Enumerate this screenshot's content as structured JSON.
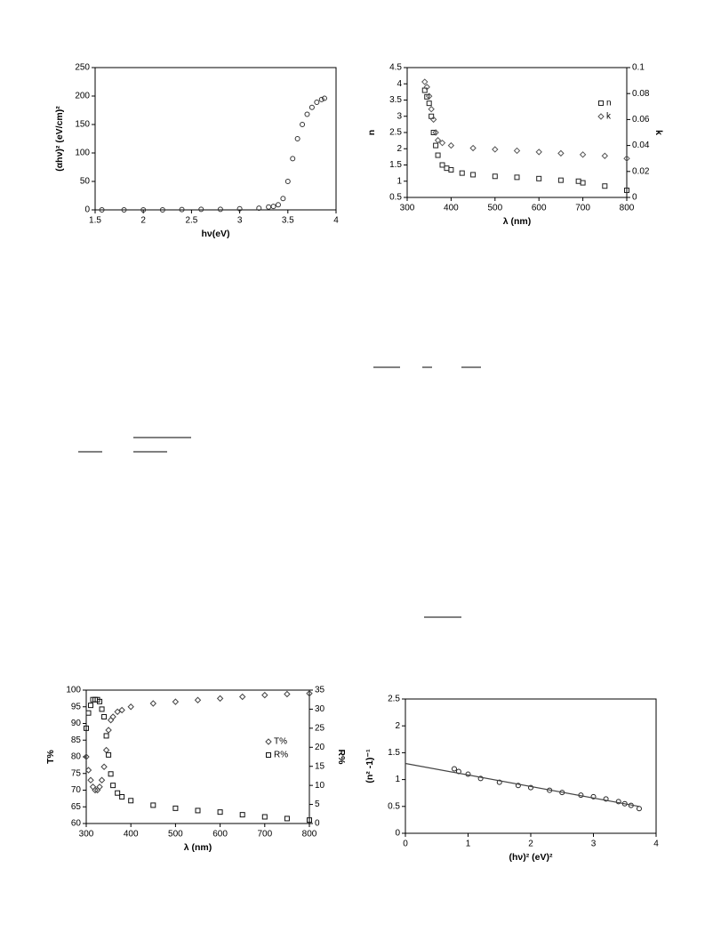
{
  "chart_data": [
    {
      "type": "scatter",
      "xlabel": "hν(eV)",
      "ylabel": "(αhν)² (eV/cm)²",
      "xlim": [
        1.5,
        4
      ],
      "xticks": [
        1.5,
        2,
        2.5,
        3,
        3.5,
        4
      ],
      "ylim": [
        0,
        250
      ],
      "yticks": [
        0,
        50,
        100,
        150,
        200,
        250
      ],
      "series": [
        {
          "color": "#333333",
          "marker": "circle",
          "x": [
            1.57,
            1.8,
            2.0,
            2.2,
            2.4,
            2.6,
            2.8,
            3.0,
            3.2,
            3.3,
            3.35,
            3.4,
            3.45,
            3.5,
            3.55,
            3.6,
            3.65,
            3.7,
            3.75,
            3.8,
            3.85,
            3.88
          ],
          "values": [
            0,
            0,
            0,
            0,
            0.5,
            1,
            1,
            2,
            3,
            5,
            6,
            9,
            20,
            50,
            90,
            125,
            150,
            168,
            180,
            189,
            194,
            196
          ]
        }
      ]
    },
    {
      "type": "scatter",
      "xlabel": "λ (nm)",
      "ylabel": "n",
      "y2label": "k",
      "xlim": [
        300,
        800
      ],
      "xticks": [
        300,
        400,
        500,
        600,
        700,
        800
      ],
      "ylim": [
        0.5,
        4.5
      ],
      "yticks": [
        0.5,
        1,
        1.5,
        2,
        2.5,
        3,
        3.5,
        4,
        4.5
      ],
      "y2lim": [
        0,
        0.1
      ],
      "y2ticks": [
        0,
        0.02,
        0.04,
        0.06,
        0.08,
        0.1
      ],
      "legend": "right",
      "series": [
        {
          "name": "n",
          "color": "#222222",
          "marker": "square",
          "x": [
            340,
            345,
            350,
            355,
            360,
            365,
            370,
            380,
            390,
            400,
            425,
            450,
            500,
            550,
            600,
            650,
            690,
            700,
            750,
            800
          ],
          "values": [
            3.8,
            3.6,
            3.4,
            3.0,
            2.5,
            2.1,
            1.8,
            1.5,
            1.4,
            1.35,
            1.25,
            1.2,
            1.15,
            1.12,
            1.08,
            1.03,
            1.0,
            0.95,
            0.85,
            0.72
          ]
        },
        {
          "name": "k",
          "color": "#555555",
          "marker": "diamond",
          "axis": "y2",
          "x": [
            340,
            345,
            350,
            355,
            360,
            365,
            370,
            380,
            400,
            450,
            500,
            550,
            600,
            650,
            700,
            750,
            800
          ],
          "values": [
            0.089,
            0.085,
            0.078,
            0.068,
            0.06,
            0.05,
            0.044,
            0.042,
            0.04,
            0.038,
            0.037,
            0.036,
            0.035,
            0.034,
            0.033,
            0.032,
            0.03
          ]
        }
      ]
    },
    {
      "type": "scatter",
      "xlabel": "λ (nm)",
      "ylabel": "T%",
      "y2label": "R%",
      "xlim": [
        300,
        800
      ],
      "xticks": [
        300,
        400,
        500,
        600,
        700,
        800
      ],
      "ylim": [
        60,
        100
      ],
      "yticks": [
        60,
        65,
        70,
        75,
        80,
        85,
        90,
        95,
        100
      ],
      "y2lim": [
        0,
        35
      ],
      "y2ticks": [
        0,
        5,
        10,
        15,
        20,
        25,
        30,
        35
      ],
      "legend": "right",
      "series": [
        {
          "name": "T%",
          "color": "#444444",
          "marker": "diamond",
          "x": [
            300,
            305,
            310,
            315,
            320,
            325,
            330,
            335,
            340,
            345,
            350,
            355,
            360,
            370,
            380,
            400,
            450,
            500,
            550,
            600,
            650,
            700,
            750,
            800
          ],
          "values": [
            80,
            76,
            73,
            71,
            70,
            70,
            71,
            73,
            77,
            82,
            88,
            91,
            92,
            93.5,
            94,
            95,
            96,
            96.5,
            97,
            97.5,
            98,
            98.5,
            98.8,
            99
          ]
        },
        {
          "name": "R%",
          "color": "#111111",
          "marker": "square",
          "axis": "y2",
          "x": [
            300,
            305,
            310,
            315,
            320,
            325,
            330,
            335,
            340,
            345,
            350,
            355,
            360,
            370,
            380,
            400,
            450,
            500,
            550,
            600,
            650,
            700,
            750,
            800
          ],
          "values": [
            25,
            29,
            31,
            32.5,
            32.5,
            32.5,
            32,
            30,
            28,
            23,
            18,
            13,
            10,
            8,
            7,
            6,
            4.8,
            4,
            3.4,
            3,
            2.3,
            1.75,
            1.3,
            0.9
          ]
        }
      ]
    },
    {
      "type": "scatter",
      "xlabel": "(hν)² (eV)²",
      "ylabel": "(n² -1)⁻¹",
      "xlim": [
        0,
        4
      ],
      "xticks": [
        0,
        1,
        2,
        3,
        4
      ],
      "ylim": [
        0,
        2.5
      ],
      "yticks": [
        0,
        0.5,
        1,
        1.5,
        2,
        2.5
      ],
      "series": [
        {
          "color": "#222222",
          "marker": "circle",
          "x": [
            0.78,
            0.85,
            1.0,
            1.2,
            1.5,
            1.8,
            2.0,
            2.3,
            2.5,
            2.8,
            3.0,
            3.2,
            3.4,
            3.5,
            3.6,
            3.73
          ],
          "values": [
            1.2,
            1.15,
            1.1,
            1.02,
            0.95,
            0.89,
            0.85,
            0.8,
            0.76,
            0.71,
            0.68,
            0.64,
            0.59,
            0.55,
            0.52,
            0.46
          ]
        },
        {
          "color": "#444444",
          "marker": "line",
          "x": [
            0,
            3.73
          ],
          "values": [
            1.3,
            0.5
          ]
        }
      ]
    }
  ]
}
